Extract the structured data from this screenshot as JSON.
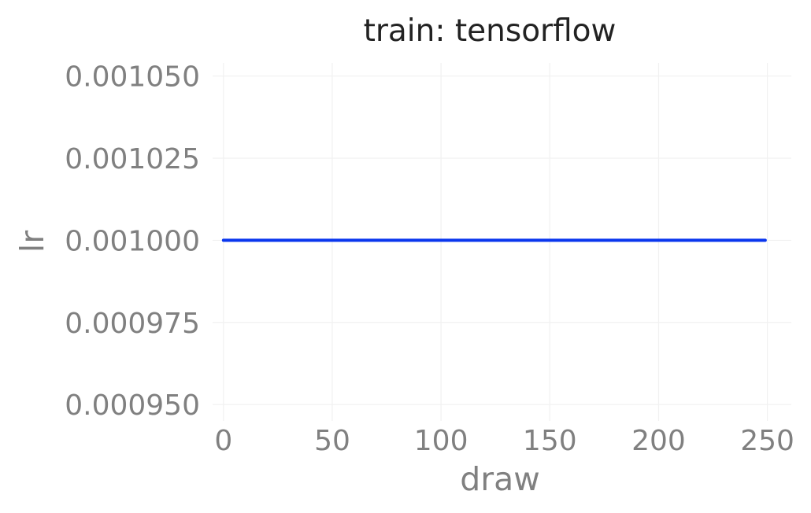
{
  "chart_data": {
    "type": "line",
    "title": "train: tensorflow",
    "xlabel": "draw",
    "ylabel": "lr",
    "xlim": [
      -5,
      261
    ],
    "ylim": [
      0.000945,
      0.001054
    ],
    "x_ticks": [
      0,
      50,
      100,
      150,
      200,
      250
    ],
    "y_ticks": [
      0.00095,
      0.000975,
      0.001,
      0.001025,
      0.00105
    ],
    "x_tick_labels": [
      "0",
      "50",
      "100",
      "150",
      "200",
      "250"
    ],
    "y_tick_labels": [
      "0.000950",
      "0.000975",
      "0.001000",
      "0.001025",
      "0.001050"
    ],
    "grid": true,
    "legend": "none",
    "series": [
      {
        "x": [
          0,
          249
        ],
        "values": [
          0.001,
          0.001
        ],
        "color": "#0a36ee"
      }
    ]
  }
}
